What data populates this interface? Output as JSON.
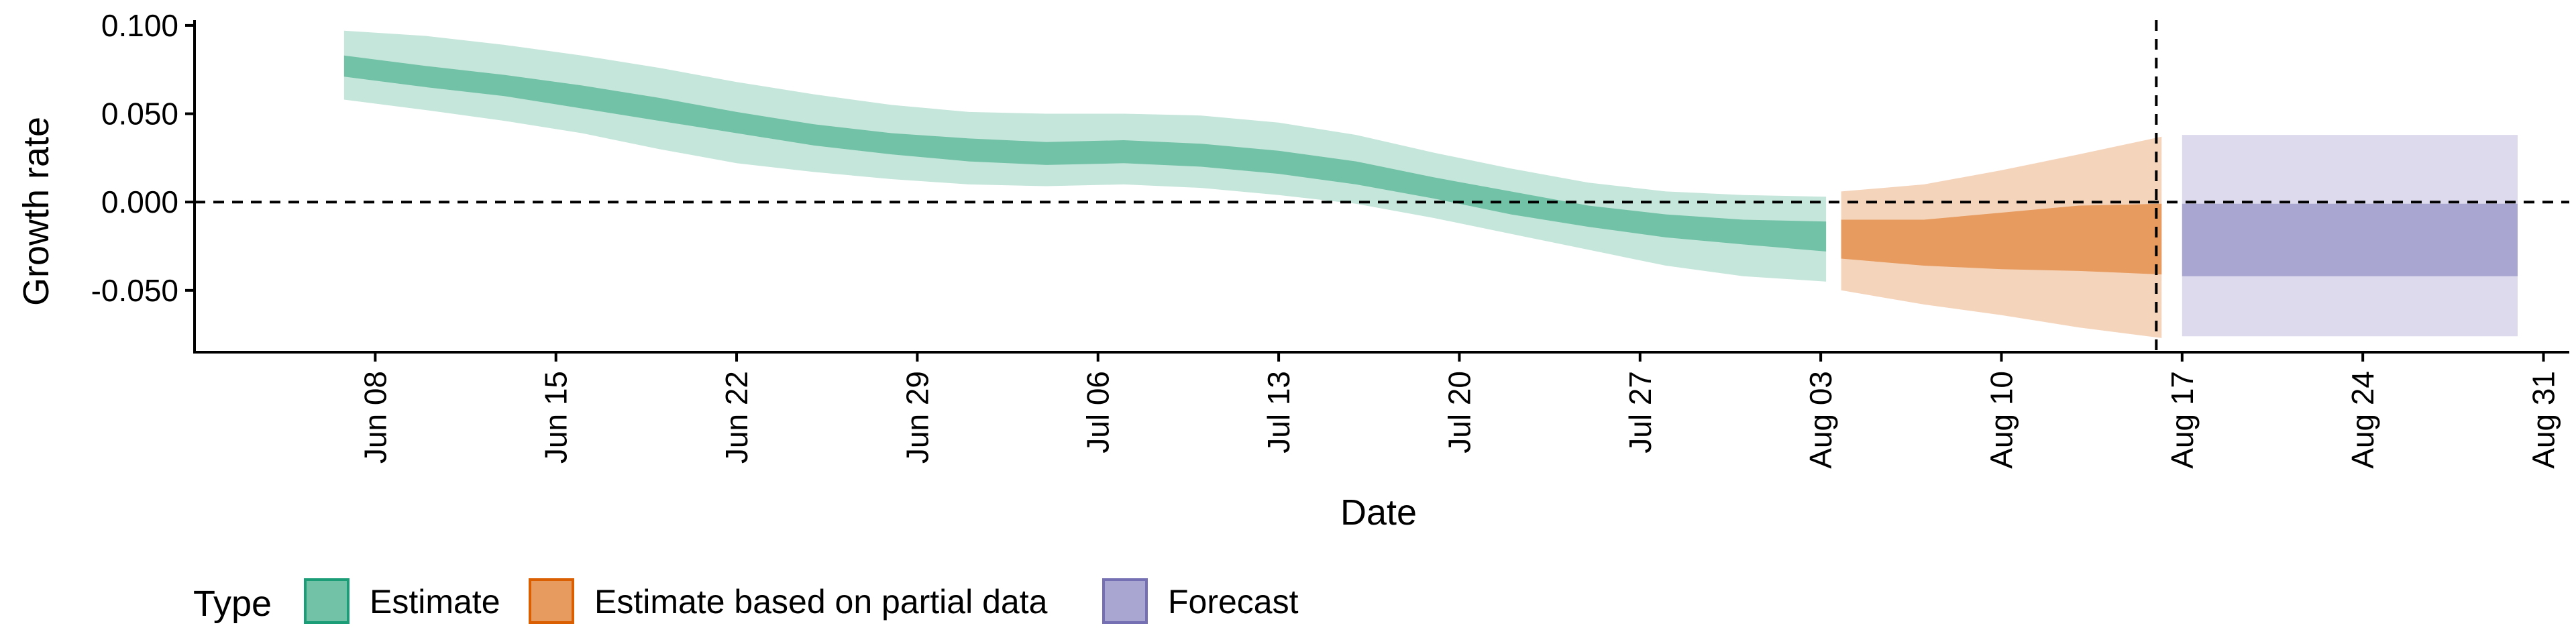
{
  "chart_data": {
    "type": "area",
    "xlabel": "Date",
    "ylabel": "Growth rate",
    "ylim": [
      -0.085,
      0.103
    ],
    "y_ticks": [
      {
        "value": 0.1,
        "label": "0.100"
      },
      {
        "value": 0.05,
        "label": "0.050"
      },
      {
        "value": 0.0,
        "label": "0.000"
      },
      {
        "value": -0.05,
        "label": "-0.050"
      }
    ],
    "x_range": [
      "2020-06-01",
      "2020-09-01"
    ],
    "x_ticks": [
      {
        "date": "2020-06-08",
        "label": "Jun 08"
      },
      {
        "date": "2020-06-15",
        "label": "Jun 15"
      },
      {
        "date": "2020-06-22",
        "label": "Jun 22"
      },
      {
        "date": "2020-06-29",
        "label": "Jun 29"
      },
      {
        "date": "2020-07-06",
        "label": "Jul 06"
      },
      {
        "date": "2020-07-13",
        "label": "Jul 13"
      },
      {
        "date": "2020-07-20",
        "label": "Jul 20"
      },
      {
        "date": "2020-07-27",
        "label": "Jul 27"
      },
      {
        "date": "2020-08-03",
        "label": "Aug 03"
      },
      {
        "date": "2020-08-10",
        "label": "Aug 10"
      },
      {
        "date": "2020-08-17",
        "label": "Aug 17"
      },
      {
        "date": "2020-08-24",
        "label": "Aug 24"
      },
      {
        "date": "2020-08-31",
        "label": "Aug 31"
      }
    ],
    "reference_lines": {
      "horizontal_y": 0.0,
      "vertical_date": "2020-08-16"
    },
    "legend": {
      "title": "Type",
      "position": "bottom",
      "items": [
        {
          "label": "Estimate",
          "fill": "#71C2A6",
          "stroke": "#1B9E77"
        },
        {
          "label": "Estimate based on partial data",
          "fill": "#E79B5E",
          "stroke": "#D95F02"
        },
        {
          "label": "Forecast",
          "fill": "#A9A6D2",
          "stroke": "#7570B3"
        }
      ]
    },
    "series": [
      {
        "type": "Estimate",
        "inner_color": "#71C2A6",
        "outer_color": "#C5E6DA",
        "points": [
          {
            "date": "2020-06-07",
            "lo90": 0.058,
            "lo50": 0.071,
            "hi50": 0.083,
            "hi90": 0.097
          },
          {
            "date": "2020-06-10",
            "lo90": 0.052,
            "lo50": 0.065,
            "hi50": 0.077,
            "hi90": 0.094
          },
          {
            "date": "2020-06-13",
            "lo90": 0.046,
            "lo50": 0.06,
            "hi50": 0.072,
            "hi90": 0.089
          },
          {
            "date": "2020-06-16",
            "lo90": 0.039,
            "lo50": 0.053,
            "hi50": 0.066,
            "hi90": 0.083
          },
          {
            "date": "2020-06-19",
            "lo90": 0.03,
            "lo50": 0.046,
            "hi50": 0.059,
            "hi90": 0.076
          },
          {
            "date": "2020-06-22",
            "lo90": 0.022,
            "lo50": 0.039,
            "hi50": 0.051,
            "hi90": 0.068
          },
          {
            "date": "2020-06-25",
            "lo90": 0.017,
            "lo50": 0.032,
            "hi50": 0.044,
            "hi90": 0.061
          },
          {
            "date": "2020-06-28",
            "lo90": 0.013,
            "lo50": 0.027,
            "hi50": 0.039,
            "hi90": 0.055
          },
          {
            "date": "2020-07-01",
            "lo90": 0.01,
            "lo50": 0.023,
            "hi50": 0.036,
            "hi90": 0.051
          },
          {
            "date": "2020-07-04",
            "lo90": 0.009,
            "lo50": 0.021,
            "hi50": 0.034,
            "hi90": 0.05
          },
          {
            "date": "2020-07-07",
            "lo90": 0.01,
            "lo50": 0.022,
            "hi50": 0.035,
            "hi90": 0.05
          },
          {
            "date": "2020-07-10",
            "lo90": 0.008,
            "lo50": 0.02,
            "hi50": 0.033,
            "hi90": 0.049
          },
          {
            "date": "2020-07-13",
            "lo90": 0.004,
            "lo50": 0.016,
            "hi50": 0.029,
            "hi90": 0.045
          },
          {
            "date": "2020-07-16",
            "lo90": -0.001,
            "lo50": 0.01,
            "hi50": 0.023,
            "hi90": 0.038
          },
          {
            "date": "2020-07-19",
            "lo90": -0.009,
            "lo50": 0.002,
            "hi50": 0.014,
            "hi90": 0.028
          },
          {
            "date": "2020-07-22",
            "lo90": -0.018,
            "lo50": -0.007,
            "hi50": 0.006,
            "hi90": 0.019
          },
          {
            "date": "2020-07-25",
            "lo90": -0.027,
            "lo50": -0.014,
            "hi50": -0.002,
            "hi90": 0.011
          },
          {
            "date": "2020-07-28",
            "lo90": -0.036,
            "lo50": -0.02,
            "hi50": -0.007,
            "hi90": 0.006
          },
          {
            "date": "2020-07-31",
            "lo90": -0.042,
            "lo50": -0.024,
            "hi50": -0.01,
            "hi90": 0.004
          },
          {
            "date": "2020-08-03",
            "lo90": -0.045,
            "lo50": -0.028,
            "hi50": -0.011,
            "hi90": 0.003
          }
        ]
      },
      {
        "type": "Estimate based on partial data",
        "inner_color": "#E79B5E",
        "outer_color": "#F5D4BC",
        "points": [
          {
            "date": "2020-08-04",
            "lo90": -0.05,
            "lo50": -0.032,
            "hi50": -0.01,
            "hi90": 0.006
          },
          {
            "date": "2020-08-07",
            "lo90": -0.058,
            "lo50": -0.036,
            "hi50": -0.01,
            "hi90": 0.01
          },
          {
            "date": "2020-08-10",
            "lo90": -0.064,
            "lo50": -0.038,
            "hi50": -0.006,
            "hi90": 0.018
          },
          {
            "date": "2020-08-13",
            "lo90": -0.071,
            "lo50": -0.039,
            "hi50": -0.002,
            "hi90": 0.027
          },
          {
            "date": "2020-08-16",
            "lo90": -0.077,
            "lo50": -0.041,
            "hi50": -0.001,
            "hi90": 0.037
          }
        ]
      },
      {
        "type": "Forecast",
        "inner_color": "#A9A6D2",
        "outer_color": "#DCDAEC",
        "points": [
          {
            "date": "2020-08-17",
            "lo90": -0.076,
            "lo50": -0.042,
            "hi50": -0.001,
            "hi90": 0.038
          },
          {
            "date": "2020-08-30",
            "lo90": -0.076,
            "lo50": -0.042,
            "hi50": -0.001,
            "hi90": 0.038
          }
        ]
      }
    ]
  }
}
